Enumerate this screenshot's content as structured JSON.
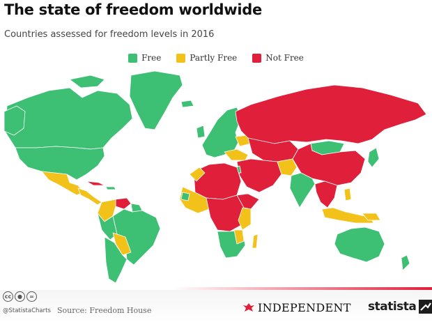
{
  "header": {
    "title": "The state of freedom worldwide",
    "subtitle": "Countries assessed for freedom levels in 2016"
  },
  "legend": [
    {
      "label": "Free",
      "color": "#3dbf74"
    },
    {
      "label": "Partly Free",
      "color": "#f2c21b"
    },
    {
      "label": "Not Free",
      "color": "#e01f3a"
    }
  ],
  "map": {
    "type": "choropleth world map",
    "categories": [
      "Free",
      "Partly Free",
      "Not Free"
    ]
  },
  "footer": {
    "license_icons": [
      "cc-icon",
      "by-icon",
      "nd-icon"
    ],
    "handle": "@StatistaCharts",
    "source": "Source: Freedom House",
    "partner_logo": "INDEPENDENT",
    "brand_logo": "statista",
    "accent_color": "#e01f3a"
  }
}
